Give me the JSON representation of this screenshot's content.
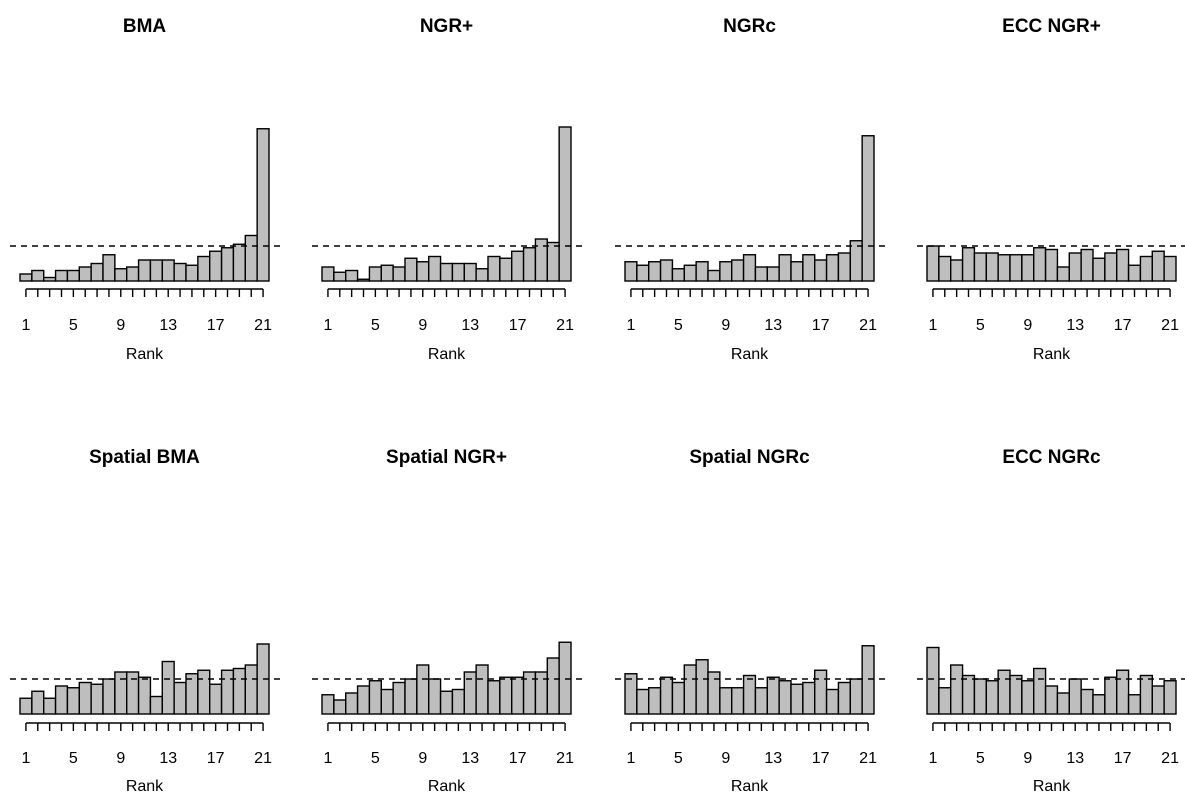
{
  "chart_data": [
    {
      "type": "bar",
      "title": "BMA",
      "xlabel": "Rank",
      "categories": [
        1,
        2,
        3,
        4,
        5,
        6,
        7,
        8,
        9,
        10,
        11,
        12,
        13,
        14,
        15,
        16,
        17,
        18,
        19,
        20,
        21
      ],
      "xticks": [
        "1",
        "5",
        "9",
        "13",
        "17",
        "21"
      ],
      "values": [
        0.2,
        0.3,
        0.1,
        0.3,
        0.3,
        0.4,
        0.5,
        0.75,
        0.35,
        0.4,
        0.6,
        0.6,
        0.6,
        0.5,
        0.45,
        0.7,
        0.85,
        0.95,
        1.05,
        1.3,
        4.35
      ],
      "reference_line": 1.0
    },
    {
      "type": "bar",
      "title": "NGR+",
      "xlabel": "Rank",
      "categories": [
        1,
        2,
        3,
        4,
        5,
        6,
        7,
        8,
        9,
        10,
        11,
        12,
        13,
        14,
        15,
        16,
        17,
        18,
        19,
        20,
        21
      ],
      "xticks": [
        "1",
        "5",
        "9",
        "13",
        "17",
        "21"
      ],
      "values": [
        0.4,
        0.25,
        0.3,
        0.05,
        0.4,
        0.45,
        0.4,
        0.65,
        0.55,
        0.7,
        0.5,
        0.5,
        0.5,
        0.35,
        0.7,
        0.65,
        0.85,
        0.95,
        1.2,
        1.1,
        4.4
      ],
      "reference_line": 1.0
    },
    {
      "type": "bar",
      "title": "NGRc",
      "xlabel": "Rank",
      "categories": [
        1,
        2,
        3,
        4,
        5,
        6,
        7,
        8,
        9,
        10,
        11,
        12,
        13,
        14,
        15,
        16,
        17,
        18,
        19,
        20,
        21
      ],
      "xticks": [
        "1",
        "5",
        "9",
        "13",
        "17",
        "21"
      ],
      "values": [
        0.55,
        0.45,
        0.55,
        0.6,
        0.35,
        0.45,
        0.55,
        0.3,
        0.55,
        0.6,
        0.75,
        0.4,
        0.4,
        0.75,
        0.55,
        0.75,
        0.6,
        0.75,
        0.8,
        1.15,
        4.15
      ],
      "reference_line": 1.0
    },
    {
      "type": "bar",
      "title": "ECC NGR+",
      "xlabel": "Rank",
      "categories": [
        1,
        2,
        3,
        4,
        5,
        6,
        7,
        8,
        9,
        10,
        11,
        12,
        13,
        14,
        15,
        16,
        17,
        18,
        19,
        20,
        21
      ],
      "xticks": [
        "1",
        "5",
        "9",
        "13",
        "17",
        "21"
      ],
      "values": [
        1.0,
        0.7,
        0.6,
        0.95,
        0.8,
        0.8,
        0.75,
        0.75,
        0.75,
        0.95,
        0.9,
        0.4,
        0.8,
        0.9,
        0.65,
        0.8,
        0.9,
        0.45,
        0.7,
        0.85,
        0.7
      ],
      "reference_line": 1.0
    },
    {
      "type": "bar",
      "title": "Spatial BMA",
      "xlabel": "Rank",
      "categories": [
        1,
        2,
        3,
        4,
        5,
        6,
        7,
        8,
        9,
        10,
        11,
        12,
        13,
        14,
        15,
        16,
        17,
        18,
        19,
        20,
        21
      ],
      "xticks": [
        "1",
        "5",
        "9",
        "13",
        "17",
        "21"
      ],
      "values": [
        0.45,
        0.65,
        0.45,
        0.8,
        0.75,
        0.9,
        0.85,
        1.0,
        1.2,
        1.2,
        1.05,
        0.5,
        1.5,
        0.9,
        1.15,
        1.25,
        0.85,
        1.25,
        1.3,
        1.4,
        2.0
      ],
      "reference_line": 1.0
    },
    {
      "type": "bar",
      "title": "Spatial NGR+",
      "xlabel": "Rank",
      "categories": [
        1,
        2,
        3,
        4,
        5,
        6,
        7,
        8,
        9,
        10,
        11,
        12,
        13,
        14,
        15,
        16,
        17,
        18,
        19,
        20,
        21
      ],
      "xticks": [
        "1",
        "5",
        "9",
        "13",
        "17",
        "21"
      ],
      "values": [
        0.55,
        0.4,
        0.6,
        0.8,
        0.95,
        0.7,
        0.9,
        1.0,
        1.4,
        1.0,
        0.65,
        0.7,
        1.2,
        1.4,
        0.95,
        1.05,
        1.05,
        1.2,
        1.2,
        1.6,
        2.05
      ],
      "reference_line": 1.0
    },
    {
      "type": "bar",
      "title": "Spatial NGRc",
      "xlabel": "Rank",
      "categories": [
        1,
        2,
        3,
        4,
        5,
        6,
        7,
        8,
        9,
        10,
        11,
        12,
        13,
        14,
        15,
        16,
        17,
        18,
        19,
        20,
        21
      ],
      "xticks": [
        "1",
        "5",
        "9",
        "13",
        "17",
        "21"
      ],
      "values": [
        1.15,
        0.7,
        0.75,
        1.05,
        0.9,
        1.4,
        1.55,
        1.2,
        0.75,
        0.75,
        1.1,
        0.75,
        1.05,
        0.95,
        0.85,
        0.9,
        1.25,
        0.7,
        0.9,
        1.0,
        1.95
      ],
      "reference_line": 1.0
    },
    {
      "type": "bar",
      "title": "ECC NGRc",
      "xlabel": "Rank",
      "categories": [
        1,
        2,
        3,
        4,
        5,
        6,
        7,
        8,
        9,
        10,
        11,
        12,
        13,
        14,
        15,
        16,
        17,
        18,
        19,
        20,
        21
      ],
      "xticks": [
        "1",
        "5",
        "9",
        "13",
        "17",
        "21"
      ],
      "values": [
        1.9,
        0.75,
        1.4,
        1.1,
        1.0,
        0.95,
        1.25,
        1.1,
        0.95,
        1.3,
        0.8,
        0.6,
        1.0,
        0.7,
        0.55,
        1.05,
        1.25,
        0.55,
        1.1,
        0.8,
        0.95
      ],
      "reference_line": 1.0
    }
  ]
}
